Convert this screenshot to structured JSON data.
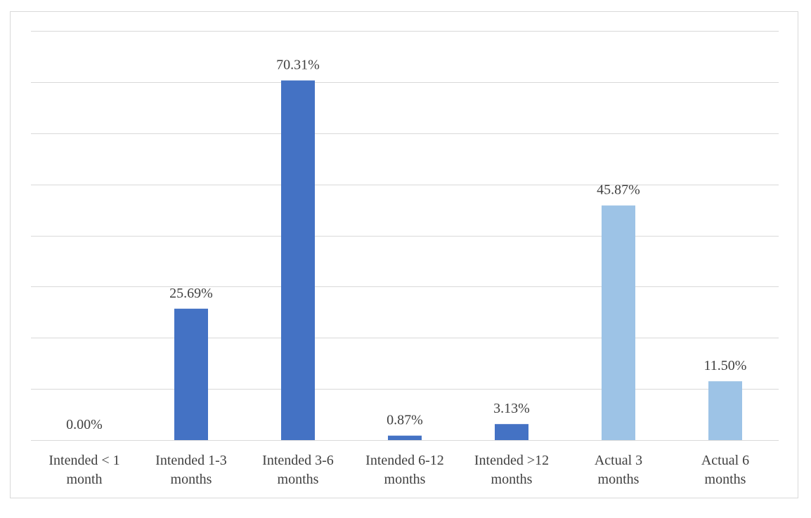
{
  "chart_data": {
    "type": "bar",
    "title": "",
    "xlabel": "",
    "ylabel": "",
    "ylim": [
      0,
      80
    ],
    "ytick_step": 10,
    "grid": true,
    "categories": [
      [
        "Intended < 1",
        "month"
      ],
      [
        "Intended 1-3",
        "months"
      ],
      [
        "Intended 3-6",
        "months"
      ],
      [
        "Intended 6-12",
        "months"
      ],
      [
        "Intended >12",
        "months"
      ],
      [
        "Actual 3",
        "months"
      ],
      [
        "Actual 6",
        "months"
      ]
    ],
    "values": [
      0.0,
      25.69,
      70.31,
      0.87,
      3.13,
      45.87,
      11.5
    ],
    "data_labels": [
      "0.00%",
      "25.69%",
      "70.31%",
      "0.87%",
      "3.13%",
      "45.87%",
      "11.50%"
    ],
    "series_group": [
      "Intended",
      "Intended",
      "Intended",
      "Intended",
      "Intended",
      "Actual",
      "Actual"
    ],
    "colors": {
      "Intended": "#4472c4",
      "Actual": "#9dc3e6"
    }
  }
}
